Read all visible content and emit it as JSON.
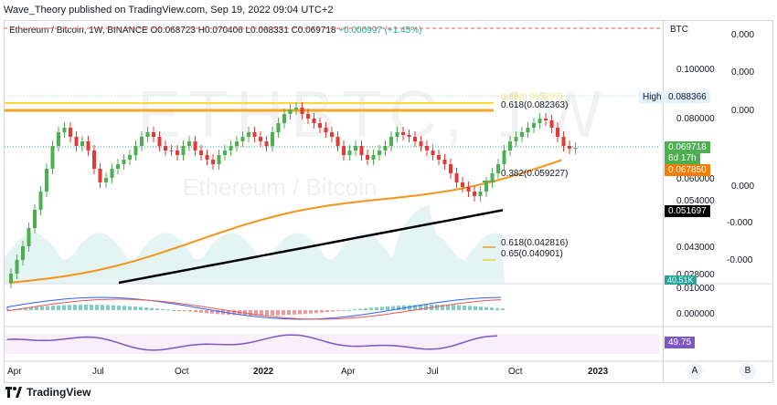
{
  "header": {
    "text": "Wave_Theory published on TradingView.com, Sep 19, 2022 09:04 UTC+2"
  },
  "symbol": {
    "title": "Ethereum / Bitcoin, 1W, BINANCE",
    "open": "O0.068723",
    "high": "H0.070406",
    "low": "L0.068331",
    "close": "C0.069718",
    "change": "+0.000997 (+1.45%)"
  },
  "watermark": {
    "ticker": "ETHBTC, 1W",
    "name": "Ethereum / Bitcoin"
  },
  "price_scale": {
    "currency": "BTC",
    "ticks": [
      "0.000",
      "0.100000",
      "0.000",
      "0.080000",
      "0.000",
      "0.060000",
      "0.000",
      "0.054000",
      "-0.000",
      "0.043000",
      "-0.000",
      "0.028000"
    ],
    "high_label": "High",
    "high_value": "0.088366",
    "last_price": "0.069718",
    "countdown": "6d 17h",
    "ema50_value": "0.067850",
    "ema200_value": "0.051697",
    "volume_value": "40.51K"
  },
  "fib_levels": [
    {
      "label": "0.618(0.082363)",
      "color": "#f5a623"
    },
    {
      "label": "0.382(0.059227)",
      "color": "#4caf50"
    },
    {
      "label": "0.618(0.042816)",
      "color": "#f5a623"
    },
    {
      "label": "0.65(0.040901)",
      "color": "#fdd835"
    }
  ],
  "macd": {
    "ticks": [
      "0.010000",
      "0.000000"
    ]
  },
  "rsi": {
    "value": "49.75"
  },
  "time_axis": [
    "Apr",
    "Jul",
    "Oct",
    "2022",
    "Apr",
    "Jul",
    "Oct",
    "2023"
  ],
  "buttons": {
    "auto": "A",
    "log": "B"
  },
  "footer": {
    "brand": "TradingView"
  },
  "colors": {
    "up": "#26a69a",
    "down": "#ef5350",
    "green_candle": "#4caf50",
    "red_candle": "#e53935",
    "ema50": "#f7931a",
    "ema200": "#000000",
    "rsi": "#7e57c2"
  }
}
